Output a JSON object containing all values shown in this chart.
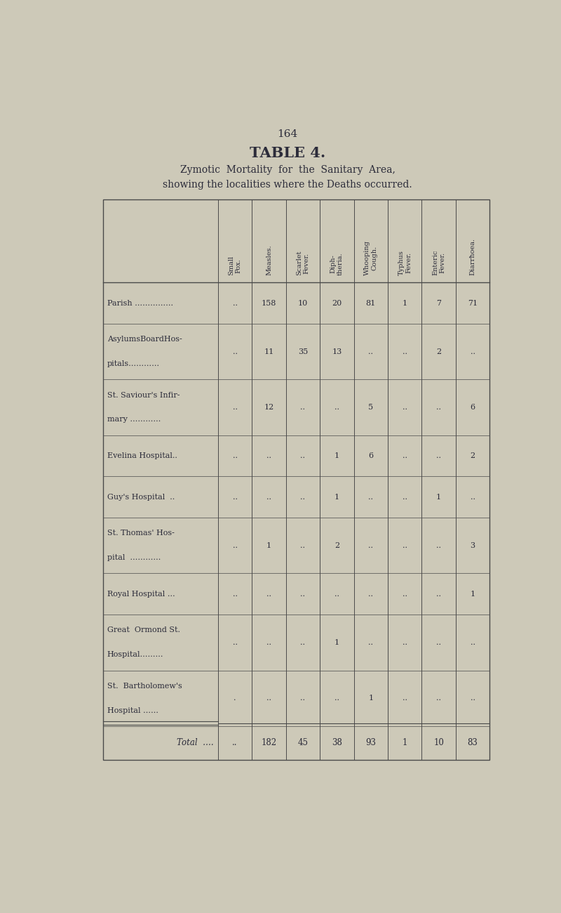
{
  "page_number": "164",
  "title": "TABLE 4.",
  "subtitle_line1": "Zymotic  Mortality  for  the  Sanitary  Area,",
  "subtitle_line2": "showing the localities where the Deaths occurred.",
  "columns": [
    "Small\nPox.",
    "Measles.",
    "Scarlet\nFever.",
    "Diph-\ntheria.",
    "Whooping\nCough.",
    "Typhus\nFever.",
    "Enteric\nFever.",
    "Diarrħoea."
  ],
  "rows": [
    {
      "label_lines": [
        "Parish ……………"
      ],
      "values": [
        "..",
        "158",
        "10",
        "20",
        "81",
        "1",
        "7",
        "71"
      ]
    },
    {
      "label_lines": [
        "AsylumsBoardHos-",
        "pitals…………"
      ],
      "values": [
        "..",
        "11",
        "35",
        "13",
        "..",
        "..",
        "2",
        ".."
      ]
    },
    {
      "label_lines": [
        "St. Saviour's Infir-",
        "mary …………"
      ],
      "values": [
        "..",
        "12",
        "..",
        "..",
        "5",
        "..",
        "..",
        "6"
      ]
    },
    {
      "label_lines": [
        "Evelina Hospital.."
      ],
      "values": [
        "..",
        "..",
        "..",
        "1",
        "6",
        "..",
        "..",
        "2"
      ]
    },
    {
      "label_lines": [
        "Guy's Hospital  .."
      ],
      "values": [
        "..",
        "..",
        "..",
        "1",
        "..",
        "..",
        "1",
        ".."
      ]
    },
    {
      "label_lines": [
        "St. Thomas' Hos-",
        "pital  …………"
      ],
      "values": [
        "..",
        "1",
        "..",
        "2",
        "..",
        "..",
        "..",
        "3"
      ]
    },
    {
      "label_lines": [
        "Royal Hospital …"
      ],
      "values": [
        "..",
        "..",
        "..",
        "..",
        "..",
        "..",
        "..",
        "1"
      ]
    },
    {
      "label_lines": [
        "Great  Ormond St.",
        "Hospital………"
      ],
      "values": [
        "..",
        "..",
        "..",
        "1",
        "..",
        "..",
        "..",
        ".."
      ]
    },
    {
      "label_lines": [
        "St.  Bartholomew's",
        "Hospital ……"
      ],
      "values": [
        ".",
        "..",
        "..",
        "..",
        "1",
        "..",
        "..",
        ".."
      ]
    }
  ],
  "total_row": {
    "label": "Total  ….",
    "values": [
      "..",
      "182",
      "45",
      "38",
      "93",
      "1",
      "10",
      "83"
    ]
  },
  "bg_color": "#cdc9b8",
  "page_bg": "#d6d2c0",
  "text_color": "#2c2c3a",
  "border_color": "#4a4a4a",
  "table_bg": "#ccc8b6"
}
